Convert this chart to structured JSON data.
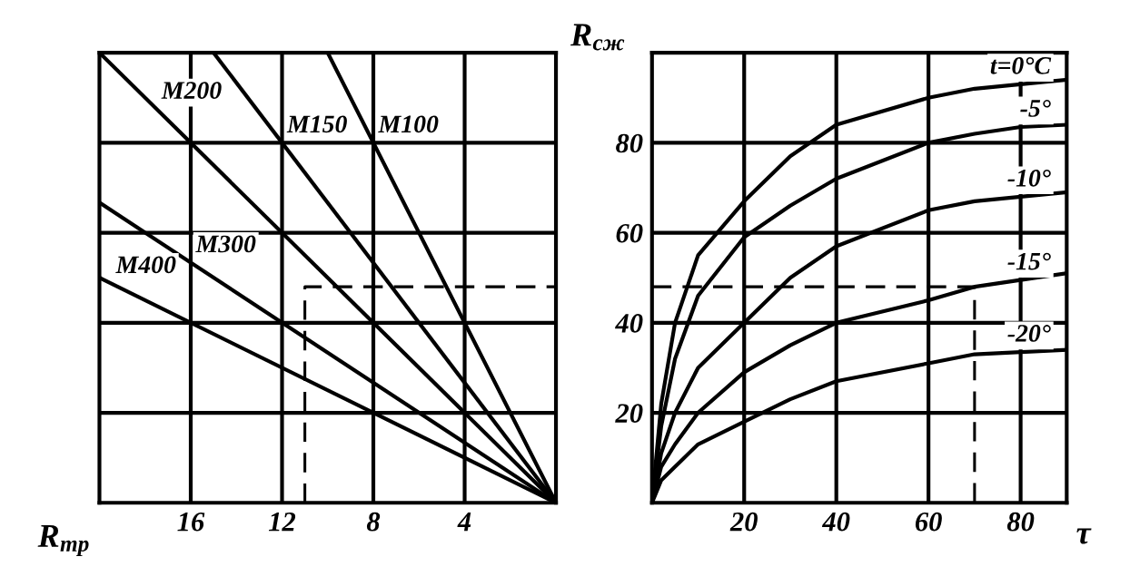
{
  "chart_data": [
    {
      "type": "line",
      "xlabel": "R$_{тр}$",
      "xlim": [
        20,
        0
      ],
      "ylim": [
        0,
        100
      ],
      "xticks": [
        16,
        12,
        8,
        4
      ],
      "yticks": [
        20,
        40,
        60,
        80
      ],
      "tick_labels": "x",
      "grid": true,
      "marker": "none",
      "line_style": "solid",
      "series": [
        {
          "name": "M100",
          "color": "#000000",
          "x": [
            10,
            0
          ],
          "values": [
            100,
            0
          ]
        },
        {
          "name": "M150",
          "color": "#000000",
          "x": [
            15,
            0
          ],
          "values": [
            100,
            0
          ]
        },
        {
          "name": "M200",
          "color": "#000000",
          "x": [
            20,
            0
          ],
          "values": [
            100,
            0
          ]
        },
        {
          "name": "M300",
          "color": "#000000",
          "x": [
            20,
            0
          ],
          "values": [
            66.7,
            0
          ]
        },
        {
          "name": "M400",
          "color": "#000000",
          "x": [
            20,
            0
          ],
          "values": [
            50,
            0
          ]
        },
        {
          "color": "#000000",
          "line_style": "dashed",
          "x": [
            11,
            11,
            0
          ],
          "values": [
            0,
            48,
            48
          ]
        }
      ]
    },
    {
      "type": "line",
      "ylabel": "R$_{сж}$",
      "xlabel": "τ",
      "xlim": [
        0,
        90
      ],
      "ylim": [
        0,
        100
      ],
      "xticks": [
        20,
        40,
        60,
        80
      ],
      "yticks": [
        20,
        40,
        60,
        80
      ],
      "grid": true,
      "marker": "none",
      "line_style": "solid",
      "series": [
        {
          "name": "t=0°C",
          "color": "#000000",
          "x": [
            0,
            2,
            5,
            10,
            20,
            30,
            40,
            60,
            70,
            80,
            90
          ],
          "values": [
            0,
            22,
            40,
            55,
            67,
            77,
            84,
            90,
            92,
            93,
            94
          ]
        },
        {
          "name": "-5°",
          "color": "#000000",
          "x": [
            0,
            2,
            5,
            10,
            20,
            30,
            40,
            60,
            70,
            80,
            90
          ],
          "values": [
            0,
            17,
            32,
            46,
            59,
            66,
            72,
            80,
            82,
            83.5,
            84
          ]
        },
        {
          "name": "-10°",
          "color": "#000000",
          "x": [
            0,
            2,
            5,
            10,
            20,
            30,
            40,
            60,
            70,
            80,
            90
          ],
          "values": [
            0,
            11,
            20,
            30,
            40,
            50,
            57,
            65,
            67,
            68,
            69
          ]
        },
        {
          "name": "-15°",
          "color": "#000000",
          "x": [
            0,
            2,
            5,
            10,
            20,
            30,
            40,
            60,
            70,
            80,
            90
          ],
          "values": [
            0,
            8,
            13,
            20,
            29,
            35,
            40,
            45,
            48,
            49.5,
            51
          ]
        },
        {
          "name": "-20°",
          "color": "#000000",
          "x": [
            0,
            2,
            5,
            10,
            20,
            30,
            40,
            60,
            70,
            80,
            90
          ],
          "values": [
            0,
            5,
            8,
            13,
            18,
            23,
            27,
            31,
            33,
            33.5,
            34
          ]
        },
        {
          "color": "#000000",
          "line_style": "dashed",
          "x": [
            0,
            70,
            70
          ],
          "values": [
            48,
            48,
            0
          ]
        }
      ]
    }
  ]
}
